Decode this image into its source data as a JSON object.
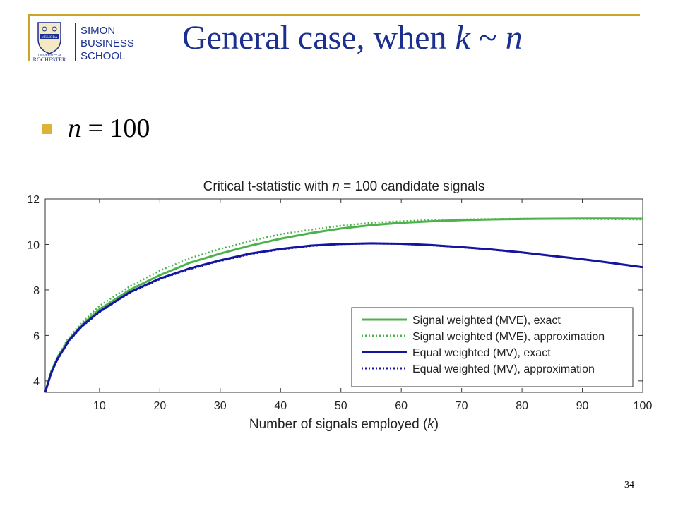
{
  "slide": {
    "title_prefix": "General case, when ",
    "title_k": "k",
    "title_tilde": " ~ ",
    "title_n": "n",
    "bullet_var": "n",
    "bullet_rest": " = 100",
    "page_number": "34"
  },
  "logo": {
    "line1": "SIMON",
    "line2": "BUSINESS",
    "line3": "SCHOOL",
    "univ_small": "UNIVERSITY of",
    "univ_big": "ROCHESTER",
    "seal_text": "MELIORA"
  },
  "colors": {
    "title": "#1b2f8f",
    "gold": "#c9a52a",
    "green": "#4cb34c",
    "blue": "#1414a0"
  },
  "chart_data": {
    "type": "line",
    "title_parts": [
      "Critical t-statistic with ",
      "n",
      " = 100 candidate signals"
    ],
    "xlabel_parts": [
      "Number of signals employed (",
      "k",
      ")"
    ],
    "ylabel": "",
    "xlim": [
      1,
      100
    ],
    "ylim": [
      3.5,
      12
    ],
    "xticks": [
      10,
      20,
      30,
      40,
      50,
      60,
      70,
      80,
      90,
      100
    ],
    "yticks": [
      4,
      6,
      8,
      10,
      12
    ],
    "grid": false,
    "legend_position": "lower-right",
    "x": [
      1,
      2,
      3,
      5,
      7,
      10,
      15,
      20,
      25,
      30,
      35,
      40,
      45,
      50,
      55,
      60,
      65,
      70,
      75,
      80,
      85,
      90,
      95,
      100
    ],
    "series": [
      {
        "name": "Signal weighted (MVE), exact",
        "style": "solid",
        "color": "#4cb34c",
        "values": [
          3.5,
          4.4,
          5.0,
          5.85,
          6.45,
          7.15,
          8.0,
          8.65,
          9.2,
          9.6,
          9.95,
          10.25,
          10.5,
          10.7,
          10.85,
          10.95,
          11.02,
          11.07,
          11.1,
          11.12,
          11.13,
          11.14,
          11.14,
          11.13
        ]
      },
      {
        "name": "Signal weighted (MVE), approximation",
        "style": "dotted",
        "color": "#4cb34c",
        "values": [
          3.5,
          4.45,
          5.05,
          5.95,
          6.55,
          7.3,
          8.15,
          8.85,
          9.4,
          9.8,
          10.15,
          10.45,
          10.65,
          10.82,
          10.95,
          11.02,
          11.07,
          11.1,
          11.12,
          11.13,
          11.13,
          11.12,
          11.11,
          11.1
        ]
      },
      {
        "name": "Equal weighted (MV), exact",
        "style": "solid",
        "color": "#1414a0",
        "values": [
          3.5,
          4.35,
          4.95,
          5.8,
          6.4,
          7.05,
          7.9,
          8.5,
          8.95,
          9.3,
          9.6,
          9.8,
          9.95,
          10.02,
          10.05,
          10.03,
          9.97,
          9.88,
          9.78,
          9.65,
          9.5,
          9.35,
          9.18,
          9.0
        ]
      },
      {
        "name": "Equal weighted (MV), approximation",
        "style": "dotted",
        "color": "#1414a0",
        "values": [
          3.5,
          4.33,
          4.92,
          5.77,
          6.37,
          7.02,
          7.87,
          8.47,
          8.92,
          9.27,
          9.57,
          9.78,
          9.93,
          10.01,
          10.04,
          10.02,
          9.96,
          9.87,
          9.77,
          9.64,
          9.49,
          9.34,
          9.17,
          8.99
        ]
      }
    ]
  }
}
